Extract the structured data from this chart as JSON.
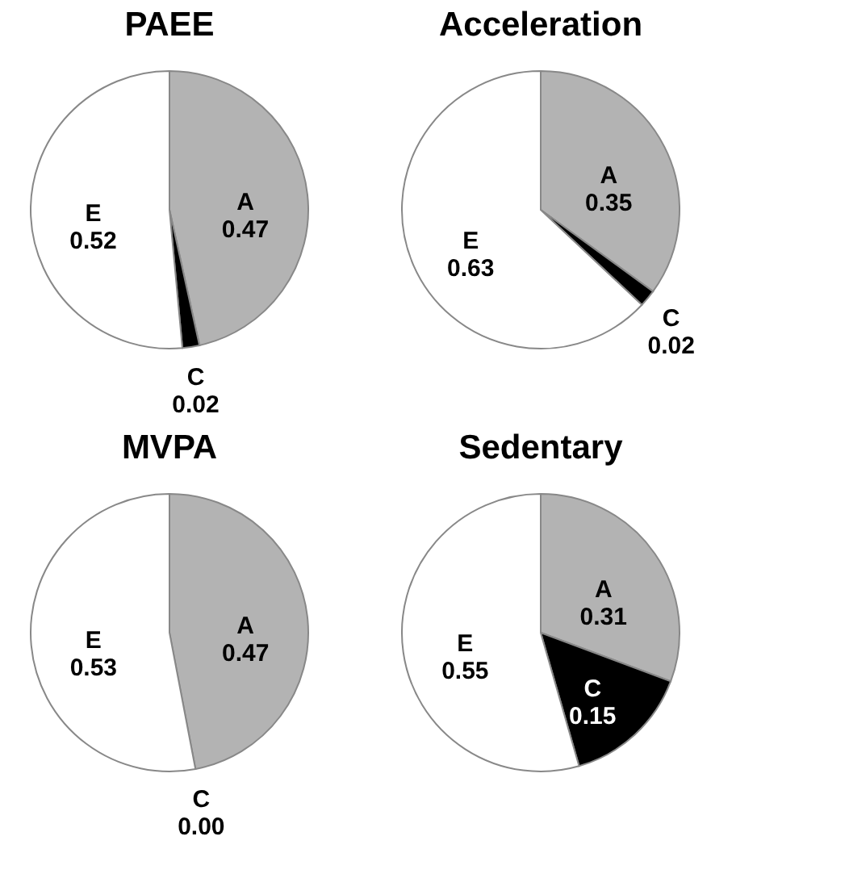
{
  "chart_data": [
    {
      "type": "pie",
      "title": "PAEE",
      "categories": [
        "A",
        "C",
        "E"
      ],
      "values": [
        0.47,
        0.02,
        0.52
      ],
      "value_labels": [
        "0.47",
        "0.02",
        "0.52"
      ],
      "colors": [
        "#b3b3b3",
        "#000000",
        "#ffffff"
      ]
    },
    {
      "type": "pie",
      "title": "Acceleration",
      "categories": [
        "A",
        "C",
        "E"
      ],
      "values": [
        0.35,
        0.02,
        0.63
      ],
      "value_labels": [
        "0.35",
        "0.02",
        "0.63"
      ],
      "colors": [
        "#b3b3b3",
        "#000000",
        "#ffffff"
      ]
    },
    {
      "type": "pie",
      "title": "MVPA",
      "categories": [
        "A",
        "C",
        "E"
      ],
      "values": [
        0.47,
        0.0,
        0.53
      ],
      "value_labels": [
        "0.47",
        "0.00",
        "0.53"
      ],
      "colors": [
        "#b3b3b3",
        "#000000",
        "#ffffff"
      ]
    },
    {
      "type": "pie",
      "title": "Sedentary",
      "categories": [
        "A",
        "C",
        "E"
      ],
      "values": [
        0.31,
        0.15,
        0.55
      ],
      "value_labels": [
        "0.31",
        "0.15",
        "0.55"
      ],
      "colors": [
        "#b3b3b3",
        "#000000",
        "#ffffff"
      ]
    }
  ]
}
